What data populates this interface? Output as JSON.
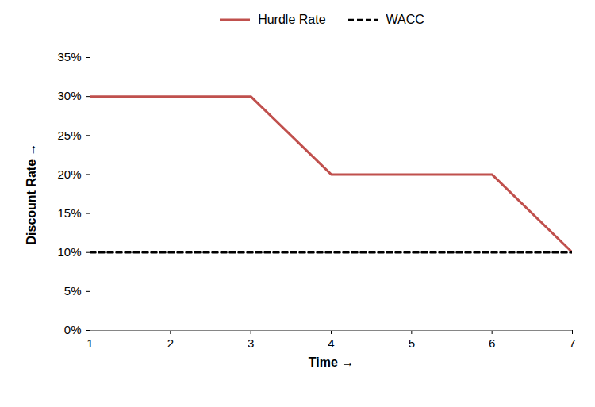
{
  "chart_data": {
    "type": "line",
    "x_label": "Time",
    "y_label": "Discount Rate",
    "x": [
      1,
      2,
      3,
      4,
      5,
      6,
      7
    ],
    "series": [
      {
        "name": "Hurdle Rate",
        "color": "#c0504d",
        "line_style": "solid",
        "values": [
          30,
          30,
          30,
          20,
          20,
          20,
          10
        ]
      },
      {
        "name": "WACC",
        "color": "#000000",
        "line_style": "dashed",
        "values": [
          10,
          10,
          10,
          10,
          10,
          10,
          10
        ]
      }
    ],
    "xlim": [
      1,
      7
    ],
    "xticks": [
      1,
      2,
      3,
      4,
      5,
      6,
      7
    ],
    "ylim": [
      0,
      35
    ],
    "yticks": [
      {
        "value": 0,
        "label": "0%"
      },
      {
        "value": 5,
        "label": "5%"
      },
      {
        "value": 10,
        "label": "10%"
      },
      {
        "value": 15,
        "label": "15%"
      },
      {
        "value": 20,
        "label": "20%"
      },
      {
        "value": 25,
        "label": "25%"
      },
      {
        "value": 30,
        "label": "30%"
      },
      {
        "value": 35,
        "label": "35%"
      }
    ],
    "grid": false,
    "legend": "top"
  }
}
